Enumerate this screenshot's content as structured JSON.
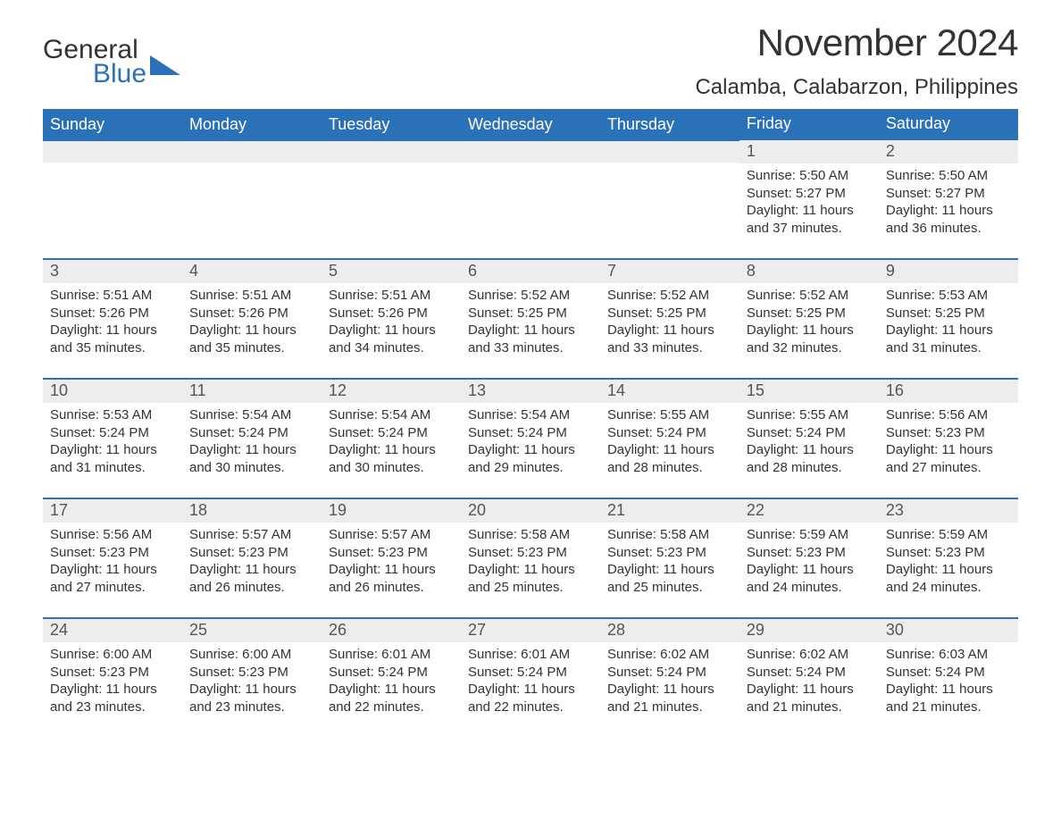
{
  "logo": {
    "general": "General",
    "blue": "Blue",
    "icon_color": "#2a71b8"
  },
  "title": {
    "month": "November 2024",
    "location": "Calamba, Calabarzon, Philippines"
  },
  "styling": {
    "header_bg": "#2a71b8",
    "header_text": "#ffffff",
    "daynum_bg": "#ededed",
    "body_text_color": "#333333",
    "day_border_top": "#2a71b8",
    "header_fontsize": 18,
    "month_fontsize": 42,
    "location_fontsize": 24,
    "body_fontsize": 15
  },
  "weekdays": [
    "Sunday",
    "Monday",
    "Tuesday",
    "Wednesday",
    "Thursday",
    "Friday",
    "Saturday"
  ],
  "weeks": [
    [
      null,
      null,
      null,
      null,
      null,
      {
        "day": "1",
        "sunrise": "Sunrise: 5:50 AM",
        "sunset": "Sunset: 5:27 PM",
        "daylight": "Daylight: 11 hours and 37 minutes."
      },
      {
        "day": "2",
        "sunrise": "Sunrise: 5:50 AM",
        "sunset": "Sunset: 5:27 PM",
        "daylight": "Daylight: 11 hours and 36 minutes."
      }
    ],
    [
      {
        "day": "3",
        "sunrise": "Sunrise: 5:51 AM",
        "sunset": "Sunset: 5:26 PM",
        "daylight": "Daylight: 11 hours and 35 minutes."
      },
      {
        "day": "4",
        "sunrise": "Sunrise: 5:51 AM",
        "sunset": "Sunset: 5:26 PM",
        "daylight": "Daylight: 11 hours and 35 minutes."
      },
      {
        "day": "5",
        "sunrise": "Sunrise: 5:51 AM",
        "sunset": "Sunset: 5:26 PM",
        "daylight": "Daylight: 11 hours and 34 minutes."
      },
      {
        "day": "6",
        "sunrise": "Sunrise: 5:52 AM",
        "sunset": "Sunset: 5:25 PM",
        "daylight": "Daylight: 11 hours and 33 minutes."
      },
      {
        "day": "7",
        "sunrise": "Sunrise: 5:52 AM",
        "sunset": "Sunset: 5:25 PM",
        "daylight": "Daylight: 11 hours and 33 minutes."
      },
      {
        "day": "8",
        "sunrise": "Sunrise: 5:52 AM",
        "sunset": "Sunset: 5:25 PM",
        "daylight": "Daylight: 11 hours and 32 minutes."
      },
      {
        "day": "9",
        "sunrise": "Sunrise: 5:53 AM",
        "sunset": "Sunset: 5:25 PM",
        "daylight": "Daylight: 11 hours and 31 minutes."
      }
    ],
    [
      {
        "day": "10",
        "sunrise": "Sunrise: 5:53 AM",
        "sunset": "Sunset: 5:24 PM",
        "daylight": "Daylight: 11 hours and 31 minutes."
      },
      {
        "day": "11",
        "sunrise": "Sunrise: 5:54 AM",
        "sunset": "Sunset: 5:24 PM",
        "daylight": "Daylight: 11 hours and 30 minutes."
      },
      {
        "day": "12",
        "sunrise": "Sunrise: 5:54 AM",
        "sunset": "Sunset: 5:24 PM",
        "daylight": "Daylight: 11 hours and 30 minutes."
      },
      {
        "day": "13",
        "sunrise": "Sunrise: 5:54 AM",
        "sunset": "Sunset: 5:24 PM",
        "daylight": "Daylight: 11 hours and 29 minutes."
      },
      {
        "day": "14",
        "sunrise": "Sunrise: 5:55 AM",
        "sunset": "Sunset: 5:24 PM",
        "daylight": "Daylight: 11 hours and 28 minutes."
      },
      {
        "day": "15",
        "sunrise": "Sunrise: 5:55 AM",
        "sunset": "Sunset: 5:24 PM",
        "daylight": "Daylight: 11 hours and 28 minutes."
      },
      {
        "day": "16",
        "sunrise": "Sunrise: 5:56 AM",
        "sunset": "Sunset: 5:23 PM",
        "daylight": "Daylight: 11 hours and 27 minutes."
      }
    ],
    [
      {
        "day": "17",
        "sunrise": "Sunrise: 5:56 AM",
        "sunset": "Sunset: 5:23 PM",
        "daylight": "Daylight: 11 hours and 27 minutes."
      },
      {
        "day": "18",
        "sunrise": "Sunrise: 5:57 AM",
        "sunset": "Sunset: 5:23 PM",
        "daylight": "Daylight: 11 hours and 26 minutes."
      },
      {
        "day": "19",
        "sunrise": "Sunrise: 5:57 AM",
        "sunset": "Sunset: 5:23 PM",
        "daylight": "Daylight: 11 hours and 26 minutes."
      },
      {
        "day": "20",
        "sunrise": "Sunrise: 5:58 AM",
        "sunset": "Sunset: 5:23 PM",
        "daylight": "Daylight: 11 hours and 25 minutes."
      },
      {
        "day": "21",
        "sunrise": "Sunrise: 5:58 AM",
        "sunset": "Sunset: 5:23 PM",
        "daylight": "Daylight: 11 hours and 25 minutes."
      },
      {
        "day": "22",
        "sunrise": "Sunrise: 5:59 AM",
        "sunset": "Sunset: 5:23 PM",
        "daylight": "Daylight: 11 hours and 24 minutes."
      },
      {
        "day": "23",
        "sunrise": "Sunrise: 5:59 AM",
        "sunset": "Sunset: 5:23 PM",
        "daylight": "Daylight: 11 hours and 24 minutes."
      }
    ],
    [
      {
        "day": "24",
        "sunrise": "Sunrise: 6:00 AM",
        "sunset": "Sunset: 5:23 PM",
        "daylight": "Daylight: 11 hours and 23 minutes."
      },
      {
        "day": "25",
        "sunrise": "Sunrise: 6:00 AM",
        "sunset": "Sunset: 5:23 PM",
        "daylight": "Daylight: 11 hours and 23 minutes."
      },
      {
        "day": "26",
        "sunrise": "Sunrise: 6:01 AM",
        "sunset": "Sunset: 5:24 PM",
        "daylight": "Daylight: 11 hours and 22 minutes."
      },
      {
        "day": "27",
        "sunrise": "Sunrise: 6:01 AM",
        "sunset": "Sunset: 5:24 PM",
        "daylight": "Daylight: 11 hours and 22 minutes."
      },
      {
        "day": "28",
        "sunrise": "Sunrise: 6:02 AM",
        "sunset": "Sunset: 5:24 PM",
        "daylight": "Daylight: 11 hours and 21 minutes."
      },
      {
        "day": "29",
        "sunrise": "Sunrise: 6:02 AM",
        "sunset": "Sunset: 5:24 PM",
        "daylight": "Daylight: 11 hours and 21 minutes."
      },
      {
        "day": "30",
        "sunrise": "Sunrise: 6:03 AM",
        "sunset": "Sunset: 5:24 PM",
        "daylight": "Daylight: 11 hours and 21 minutes."
      }
    ]
  ]
}
